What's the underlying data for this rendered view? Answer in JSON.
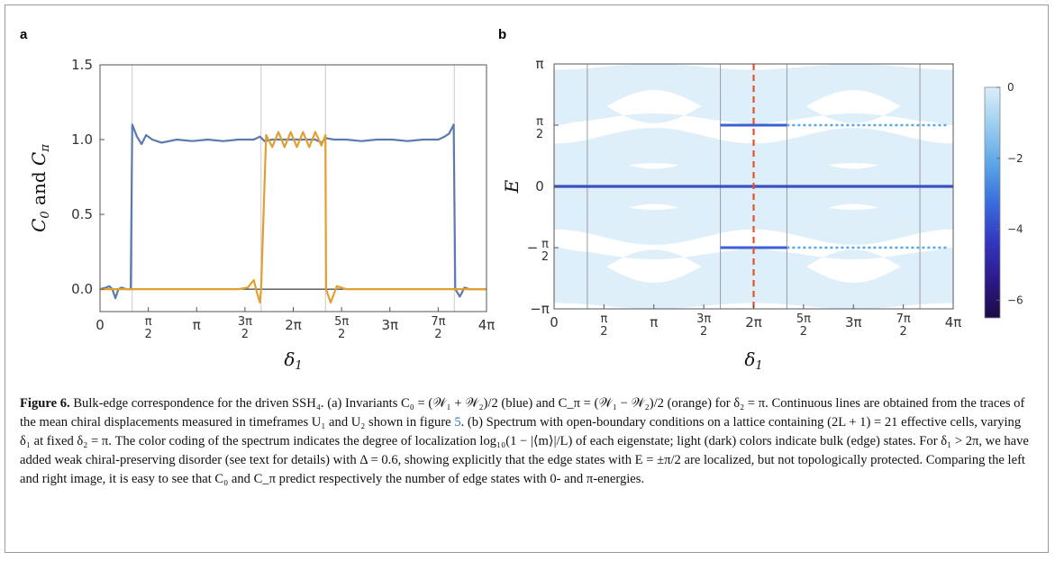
{
  "panel_a_label": "a",
  "panel_b_label": "b",
  "chart_data": [
    {
      "type": "line",
      "panel": "a",
      "xlabel": "δ1",
      "ylabel": "C0 and Cπ",
      "xlim": [
        0,
        12.566
      ],
      "ylim": [
        -0.15,
        1.5
      ],
      "y_ticks": [
        "0.0",
        "0.5",
        "1.0",
        "1.5"
      ],
      "x_ticks": [
        "0",
        "π/2",
        "π",
        "3π/2",
        "2π",
        "5π/2",
        "3π",
        "7π/2",
        "4π"
      ],
      "grid": false,
      "vertical_reference_lines": [
        1.047,
        5.236,
        7.33,
        11.519
      ],
      "horizontal_reference_line": 0,
      "series": [
        {
          "name": "C0",
          "color": "#5a7ab0",
          "x": [
            0,
            0.2,
            0.3,
            0.4,
            0.5,
            0.6,
            0.7,
            0.85,
            1.0,
            1.05,
            1.2,
            1.35,
            1.5,
            1.7,
            2.0,
            2.5,
            3.0,
            3.5,
            4.0,
            4.5,
            5.0,
            5.2,
            5.35,
            5.6,
            6.0,
            6.4,
            6.8,
            7.0,
            7.2,
            7.35,
            7.6,
            8.0,
            8.5,
            9.0,
            9.5,
            10.0,
            10.5,
            11.0,
            11.2,
            11.35,
            11.5,
            11.55,
            11.7,
            11.85,
            12.0,
            12.566
          ],
          "values": [
            0,
            0.01,
            0.02,
            0.0,
            -0.06,
            0.0,
            0.01,
            0.0,
            0.0,
            1.1,
            1.02,
            0.97,
            1.03,
            1.0,
            0.98,
            1.0,
            0.99,
            1.0,
            0.99,
            1.0,
            1.0,
            1.02,
            0.99,
            1.0,
            1.0,
            1.0,
            1.0,
            1.0,
            0.98,
            1.01,
            1.0,
            1.0,
            0.99,
            1.0,
            1.0,
            0.99,
            1.0,
            1.0,
            1.02,
            1.04,
            1.1,
            0.0,
            -0.05,
            0.01,
            0.0,
            0.0
          ]
        },
        {
          "name": "Cπ",
          "color": "#e0a02e",
          "x": [
            0,
            1.0,
            2.0,
            3.0,
            4.0,
            4.5,
            4.8,
            5.0,
            5.1,
            5.2,
            5.236,
            5.4,
            5.6,
            5.8,
            6.0,
            6.2,
            6.4,
            6.6,
            6.8,
            7.0,
            7.2,
            7.33,
            7.35,
            7.5,
            7.7,
            8.0,
            9.0,
            10.0,
            11.0,
            12.566
          ],
          "values": [
            0,
            0,
            0,
            0,
            0,
            0.0,
            0.01,
            0.06,
            -0.02,
            -0.09,
            0.0,
            1.03,
            0.95,
            1.05,
            0.95,
            1.05,
            0.95,
            1.05,
            0.95,
            1.05,
            0.96,
            1.03,
            0.0,
            -0.09,
            0.02,
            0.0,
            0.0,
            0.0,
            0.0,
            0.0
          ]
        }
      ]
    },
    {
      "type": "heatmap",
      "panel": "b",
      "xlabel": "δ1",
      "ylabel": "E",
      "xlim": [
        0,
        12.566
      ],
      "ylim": [
        -3.1416,
        3.1416
      ],
      "y_ticks": [
        "π",
        "π/2",
        "0",
        "−π/2",
        "−π"
      ],
      "x_ticks": [
        "0",
        "π/2",
        "π",
        "3π/2",
        "2π",
        "5π/2",
        "3π",
        "7π/2",
        "4π"
      ],
      "colorbar_ticks": [
        "0",
        "−2",
        "−4",
        "−6"
      ],
      "colorbar_range": [
        -6.5,
        0
      ],
      "colorbar_colors": [
        "#dceefa",
        "#9ccdf0",
        "#5aa6e6",
        "#3a6ddb",
        "#3338c0",
        "#2d1a8a",
        "#1c0a44"
      ],
      "edge_state_energies": [
        0,
        1.5708,
        -1.5708
      ],
      "marker_line_x": 6.283,
      "marker_line_color": "#e8502a",
      "vertical_reference_lines": [
        1.047,
        5.236,
        7.33,
        11.519
      ]
    }
  ],
  "caption": {
    "lead": "Figure 6.",
    "body_before_ref": " Bulk-edge correspondence for the driven SSH₄. (a) Invariants C₀ = (𝒲₁ + 𝒲₂)/2 (blue) and C_π = (𝒲₁ − 𝒲₂)/2 (orange) for δ₂ = π. Continuous lines are obtained from the traces of the mean chiral displacements measured in timeframes U₁ and U₂ shown in figure ",
    "ref": "5",
    "body_after_ref": ". (b) Spectrum with open-boundary conditions on a lattice containing (2L + 1) = 21 effective cells, varying δ₁ at fixed δ₂ = π. The color coding of the spectrum indicates the degree of localization log₁₀(1 − |⟨m⟩|/L) of each eigenstate; light (dark) colors indicate bulk (edge) states. For δ₁ > 2π, we have added weak chiral-preserving disorder (see text for details) with Δ = 0.6, showing explicitly that the edge states with E = ±π/2 are localized, but not topologically protected. Comparing the left and right image, it is easy to see that C₀ and C_π predict respectively the number of edge states with 0- and π-energies."
  }
}
